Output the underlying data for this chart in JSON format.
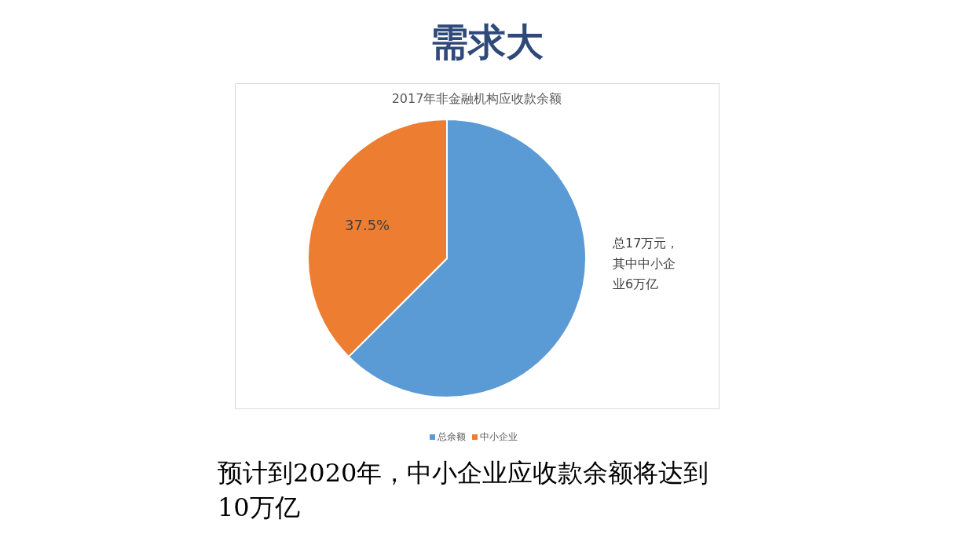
{
  "chart_data": {
    "type": "pie",
    "title": "需求大",
    "subtitle": "2017年非金融机构应收款余额",
    "categories": [
      "总余额",
      "中小企业"
    ],
    "values": [
      62.5,
      37.5
    ],
    "colors": [
      "#5b9bd5",
      "#ed7d31"
    ],
    "value_labels": [
      null,
      "37.5%"
    ],
    "legend": "bottom",
    "annotations": [
      "总17万元，其中中小企业6万亿",
      "预计到2020年，中小企业应收款余额将达到10万亿"
    ]
  }
}
